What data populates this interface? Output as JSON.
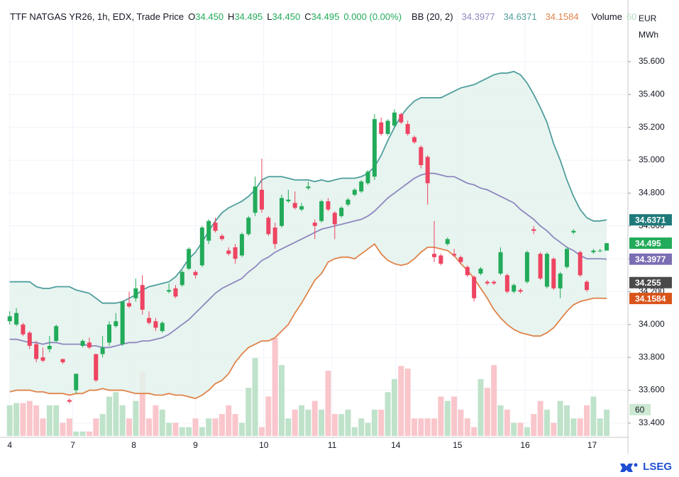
{
  "header": {
    "title": "TTF NATGAS YR26, 1h, EDX, Trade Price",
    "ohlc": [
      {
        "label": "O",
        "value": "34.450"
      },
      {
        "label": "H",
        "value": "34.495"
      },
      {
        "label": "L",
        "value": "34.450"
      },
      {
        "label": "C",
        "value": "34.495"
      }
    ],
    "change": "0.000 (0.00%)",
    "bb_label": "BB (20, 2)",
    "bb_values": [
      {
        "text": "34.3977",
        "color": "#8e87c0"
      },
      {
        "text": "34.6371",
        "color": "#4f9e9e"
      },
      {
        "text": "34.1584",
        "color": "#e0834a"
      }
    ],
    "volume_label": "Volume",
    "volume_value": "60"
  },
  "chart_data": {
    "type": "candlestick",
    "y_unit": [
      "EUR",
      "MWh"
    ],
    "xlim": [
      -0.4,
      93.2
    ],
    "xticks": [
      {
        "value": 0,
        "label": "4"
      },
      {
        "value": 9.5,
        "label": "7"
      },
      {
        "value": 18.7,
        "label": "8"
      },
      {
        "value": 28,
        "label": "9"
      },
      {
        "value": 38.3,
        "label": "10"
      },
      {
        "value": 48.6,
        "label": "11"
      },
      {
        "value": 58.2,
        "label": "14"
      },
      {
        "value": 67.5,
        "label": "15"
      },
      {
        "value": 77.7,
        "label": "16"
      },
      {
        "value": 87.8,
        "label": "17"
      }
    ],
    "ylim": [
      33.322,
      35.932
    ],
    "yticks": [
      {
        "value": 33.4,
        "label": "33.400"
      },
      {
        "value": 33.6,
        "label": "33.600"
      },
      {
        "value": 33.8,
        "label": "33.800"
      },
      {
        "value": 34,
        "label": "34.000"
      },
      {
        "value": 34.2,
        "label": "34.200"
      },
      {
        "value": 34.4,
        "label": "34.400"
      },
      {
        "value": 34.6,
        "label": "34.600"
      },
      {
        "value": 34.8,
        "label": "34.800"
      },
      {
        "value": 35,
        "label": "35.000"
      },
      {
        "value": 35.2,
        "label": "35.200"
      },
      {
        "value": 35.4,
        "label": "35.400"
      },
      {
        "value": 35.6,
        "label": "35.600"
      }
    ],
    "grid": true,
    "up_color": "#22ab5a",
    "down_color": "#ee4462",
    "volume_up_color": "#bfe2ca",
    "volume_down_color": "#f9c6cb",
    "open": [
      34.02,
      34.0,
      34.0,
      33.95,
      33.88,
      33.8,
      33.85,
      33.9,
      33.79,
      33.54,
      33.6,
      33.87,
      33.89,
      33.82,
      33.82,
      33.89,
      33.99,
      33.88,
      34.13,
      34.16,
      34.24,
      34.04,
      34.02,
      33.96,
      34.2,
      34.22,
      34.24,
      34.34,
      34.32,
      34.36,
      34.51,
      34.62,
      34.54,
      34.45,
      34.47,
      34.42,
      34.55,
      34.68,
      34.82,
      34.65,
      34.59,
      34.6,
      34.75,
      34.74,
      34.7,
      34.83,
      34.62,
      34.63,
      34.75,
      34.68,
      34.66,
      34.73,
      34.79,
      34.81,
      34.86,
      34.9,
      35.23,
      35.16,
      35.21,
      35.28,
      35.22,
      35.14,
      35.08,
      35.02,
      34.43,
      34.42,
      34.49,
      34.43,
      34.41,
      34.35,
      34.29,
      34.31,
      34.26,
      34.26,
      34.31,
      34.3,
      34.2,
      34.21,
      34.26,
      34.58,
      34.43,
      34.23,
      34.4,
      34.22,
      34.35,
      34.56,
      34.44,
      34.26,
      34.44,
      34.45,
      34.45
    ],
    "high": [
      34.08,
      34.1,
      34.01,
      33.96,
      33.9,
      33.86,
      33.93,
      34.0,
      33.79,
      33.55,
      33.7,
      33.91,
      33.92,
      33.82,
      33.93,
      34.02,
      34.07,
      34.14,
      34.2,
      34.28,
      34.3,
      34.08,
      34.04,
      34.02,
      34.25,
      34.24,
      34.33,
      34.47,
      34.33,
      34.6,
      34.64,
      34.65,
      34.55,
      34.47,
      34.49,
      34.56,
      34.66,
      34.9,
      35.01,
      34.66,
      34.62,
      34.79,
      34.82,
      34.81,
      34.74,
      34.87,
      34.64,
      34.76,
      34.77,
      34.69,
      34.72,
      34.77,
      34.83,
      34.88,
      34.94,
      35.28,
      35.26,
      35.25,
      35.31,
      35.29,
      35.24,
      35.15,
      35.09,
      35.03,
      34.63,
      34.43,
      34.53,
      34.46,
      34.42,
      34.36,
      34.3,
      34.35,
      34.27,
      34.27,
      34.47,
      34.31,
      34.25,
      34.22,
      34.45,
      34.6,
      34.44,
      34.44,
      34.41,
      34.32,
      34.47,
      34.58,
      34.45,
      34.27,
      34.46,
      34.46,
      34.495
    ],
    "low": [
      34.0,
      33.99,
      33.93,
      33.85,
      33.77,
      33.77,
      33.83,
      33.89,
      33.76,
      33.52,
      33.58,
      33.86,
      33.85,
      33.65,
      33.8,
      33.87,
      33.98,
      33.87,
      34.1,
      34.14,
      34.06,
      34.0,
      33.96,
      33.95,
      34.19,
      34.16,
      34.23,
      34.33,
      34.28,
      34.35,
      34.49,
      34.56,
      34.51,
      34.42,
      34.37,
      34.41,
      34.54,
      34.66,
      34.68,
      34.54,
      34.46,
      34.59,
      34.74,
      34.7,
      34.69,
      34.82,
      34.52,
      34.62,
      34.69,
      34.52,
      34.65,
      34.72,
      34.78,
      34.8,
      34.85,
      34.88,
      35.15,
      35.15,
      35.2,
      35.22,
      35.15,
      35.1,
      34.95,
      34.73,
      34.38,
      34.36,
      34.48,
      34.41,
      34.37,
      34.29,
      34.14,
      34.3,
      34.24,
      34.24,
      34.3,
      34.19,
      34.19,
      34.19,
      34.25,
      34.55,
      34.27,
      34.22,
      34.21,
      34.16,
      34.34,
      34.55,
      34.29,
      34.2,
      34.43,
      34.44,
      34.45
    ],
    "close": [
      34.05,
      34.07,
      33.94,
      33.87,
      33.79,
      33.78,
      33.87,
      33.99,
      33.77,
      33.53,
      33.7,
      33.9,
      33.86,
      33.66,
      33.86,
      34.0,
      34.02,
      34.14,
      34.11,
      34.22,
      34.09,
      34.01,
      33.98,
      34.01,
      34.21,
      34.17,
      34.32,
      34.46,
      34.3,
      34.59,
      34.63,
      34.57,
      34.52,
      34.43,
      34.4,
      34.55,
      34.65,
      34.84,
      34.7,
      34.55,
      34.49,
      34.77,
      34.76,
      34.71,
      34.72,
      34.84,
      34.6,
      34.75,
      34.7,
      34.61,
      34.71,
      34.76,
      34.82,
      34.87,
      34.93,
      35.25,
      35.16,
      35.24,
      35.29,
      35.23,
      35.16,
      35.11,
      34.97,
      34.86,
      34.41,
      34.37,
      34.52,
      34.42,
      34.38,
      34.3,
      34.16,
      34.34,
      34.25,
      34.25,
      34.44,
      34.2,
      34.24,
      34.2,
      34.44,
      34.57,
      34.28,
      34.43,
      34.22,
      34.31,
      34.46,
      34.57,
      34.3,
      34.21,
      34.45,
      34.45,
      34.495
    ],
    "volume": [
      70,
      75,
      75,
      80,
      70,
      40,
      70,
      70,
      30,
      40,
      10,
      10,
      10,
      40,
      50,
      90,
      100,
      70,
      40,
      80,
      146,
      40,
      70,
      60,
      30,
      30,
      20,
      20,
      40,
      20,
      40,
      40,
      50,
      70,
      50,
      30,
      110,
      178,
      20,
      90,
      224,
      162,
      40,
      60,
      70,
      60,
      80,
      60,
      149,
      50,
      50,
      60,
      20,
      40,
      30,
      60,
      60,
      100,
      130,
      160,
      154,
      40,
      40,
      40,
      40,
      90,
      80,
      90,
      60,
      40,
      20,
      130,
      110,
      162,
      70,
      60,
      30,
      30,
      20,
      50,
      80,
      60,
      30,
      80,
      70,
      40,
      40,
      70,
      90,
      40,
      60
    ],
    "band_fill": "#e4f2ec",
    "bands": [
      {
        "color": "#4f9e9e",
        "values": [
          34.26,
          34.26,
          34.26,
          34.26,
          34.23,
          34.22,
          34.22,
          34.23,
          34.23,
          34.23,
          34.21,
          34.2,
          34.19,
          34.16,
          34.13,
          34.13,
          34.13,
          34.14,
          34.16,
          34.18,
          34.21,
          34.23,
          34.24,
          34.25,
          34.26,
          34.29,
          34.34,
          34.4,
          34.44,
          34.5,
          34.57,
          34.63,
          34.68,
          34.71,
          34.73,
          34.75,
          34.78,
          34.82,
          34.88,
          34.9,
          34.9,
          34.9,
          34.89,
          34.88,
          34.88,
          34.88,
          34.87,
          34.88,
          34.87,
          34.88,
          34.89,
          34.89,
          34.89,
          34.9,
          34.92,
          34.96,
          35.03,
          35.12,
          35.2,
          35.27,
          35.32,
          35.36,
          35.38,
          35.38,
          35.38,
          35.38,
          35.4,
          35.42,
          35.44,
          35.45,
          35.46,
          35.48,
          35.5,
          35.52,
          35.53,
          35.53,
          35.54,
          35.52,
          35.47,
          35.4,
          35.32,
          35.23,
          35.1,
          35.0,
          34.88,
          34.78,
          34.7,
          34.65,
          34.63,
          34.63,
          34.6371
        ]
      },
      {
        "color": "#8e87c0",
        "values": [
          33.91,
          33.91,
          33.9,
          33.89,
          33.89,
          33.88,
          33.89,
          33.89,
          33.88,
          33.88,
          33.88,
          33.88,
          33.87,
          33.87,
          33.86,
          33.86,
          33.87,
          33.88,
          33.89,
          33.89,
          33.9,
          33.9,
          33.91,
          33.92,
          33.94,
          33.97,
          34.0,
          34.03,
          34.07,
          34.11,
          34.15,
          34.19,
          34.22,
          34.24,
          34.26,
          34.28,
          34.32,
          34.35,
          34.39,
          34.41,
          34.44,
          34.46,
          34.48,
          34.5,
          34.52,
          34.54,
          34.56,
          34.58,
          34.59,
          34.6,
          34.61,
          34.62,
          34.63,
          34.64,
          34.66,
          34.69,
          34.73,
          34.77,
          34.8,
          34.83,
          34.86,
          34.89,
          34.91,
          34.92,
          34.92,
          34.91,
          34.9,
          34.9,
          34.88,
          34.86,
          34.85,
          34.83,
          34.82,
          34.8,
          34.78,
          34.76,
          34.74,
          34.7,
          34.67,
          34.64,
          34.6,
          34.57,
          34.53,
          34.5,
          34.47,
          34.45,
          34.42,
          34.4,
          34.4,
          34.4,
          34.3977
        ]
      },
      {
        "color": "#e0834a",
        "values": [
          33.59,
          33.6,
          33.6,
          33.6,
          33.59,
          33.59,
          33.58,
          33.58,
          33.58,
          33.57,
          33.58,
          33.58,
          33.6,
          33.6,
          33.61,
          33.6,
          33.6,
          33.6,
          33.59,
          33.58,
          33.58,
          33.58,
          33.57,
          33.57,
          33.58,
          33.57,
          33.57,
          33.56,
          33.55,
          33.57,
          33.6,
          33.64,
          33.66,
          33.7,
          33.77,
          33.82,
          33.86,
          33.88,
          33.9,
          33.9,
          33.92,
          33.96,
          34.0,
          34.07,
          34.13,
          34.2,
          34.27,
          34.31,
          34.38,
          34.4,
          34.41,
          34.41,
          34.4,
          34.43,
          34.46,
          34.49,
          34.43,
          34.39,
          34.37,
          34.36,
          34.37,
          34.4,
          34.44,
          34.47,
          34.47,
          34.46,
          34.45,
          34.42,
          34.37,
          34.33,
          34.28,
          34.22,
          34.16,
          34.09,
          34.04,
          34.0,
          33.97,
          33.95,
          33.94,
          33.93,
          33.93,
          33.95,
          33.98,
          34.03,
          34.08,
          34.12,
          34.14,
          34.15,
          34.16,
          34.16,
          34.1584
        ]
      }
    ],
    "price_tags": [
      {
        "value": 34.6371,
        "label": "34.6371",
        "color": "#1f7a7a"
      },
      {
        "value": 34.495,
        "label": "34.495",
        "color": "#22ab5a"
      },
      {
        "value": 34.3977,
        "label": "34.3977",
        "color": "#7b6db3"
      },
      {
        "value": 34.255,
        "label": "34.255",
        "color": "#4a4a4a"
      },
      {
        "value": 34.1584,
        "label": "34.1584",
        "color": "#d9541a"
      }
    ],
    "volume_tag": {
      "value": 60,
      "label": "60",
      "color": "#cde9d4"
    }
  },
  "logo": "LSEG"
}
